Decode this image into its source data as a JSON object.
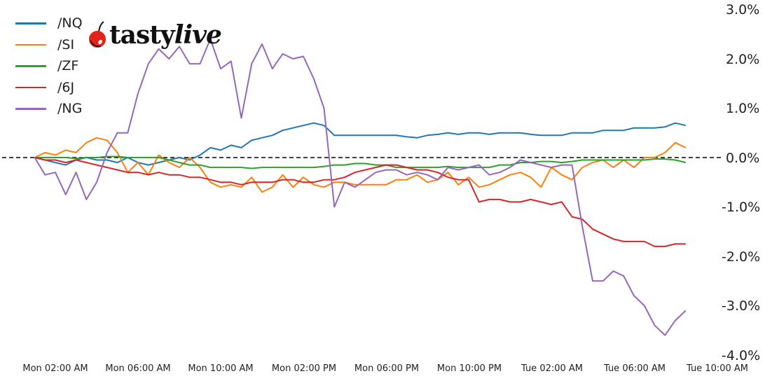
{
  "logo": {
    "cherry_icon": "cherry-icon",
    "text_bold": "tasty",
    "text_italic": "live",
    "accent": "#e2231a"
  },
  "legend": [
    {
      "label": "/NQ",
      "color": "#1f77b4"
    },
    {
      "label": "/SI",
      "color": "#ff7f0e"
    },
    {
      "label": "/ZF",
      "color": "#2ca02c"
    },
    {
      "label": "/6J",
      "color": "#d62728"
    },
    {
      "label": "/NG",
      "color": "#9467bd"
    }
  ],
  "yticks": [
    "3.0%",
    "2.0%",
    "1.0%",
    "0.0%",
    "-1.0%",
    "-2.0%",
    "-3.0%",
    "-4.0%"
  ],
  "xticks": [
    "Mon 02:00 AM",
    "Mon 06:00 AM",
    "Mon 10:00 AM",
    "Mon 02:00 PM",
    "Mon 06:00 PM",
    "Mon 10:00 PM",
    "Tue 02:00 AM",
    "Tue 06:00 AM",
    "Tue 10:00 AM"
  ],
  "chart_data": {
    "type": "line",
    "title": "",
    "xlabel": "",
    "ylabel": "",
    "ylim": [
      -4.0,
      3.0
    ],
    "y_axis_position": "right",
    "y_tick_format": "percent",
    "reference_line": {
      "y": 0.0,
      "style": "dashed",
      "color": "#000000"
    },
    "legend_position": "upper left",
    "grid": false,
    "x_hours_from_mon_0000": [
      1.0,
      1.5,
      2.0,
      2.5,
      3.0,
      3.5,
      4.0,
      4.5,
      5.0,
      5.5,
      6.0,
      6.5,
      7.0,
      7.5,
      8.0,
      8.5,
      9.0,
      9.5,
      10.0,
      10.5,
      11.0,
      11.5,
      12.0,
      12.5,
      13.0,
      13.5,
      14.0,
      14.5,
      15.0,
      15.5,
      16.0,
      16.5,
      17.0,
      17.5,
      18.0,
      18.5,
      19.0,
      19.5,
      20.0,
      20.5,
      21.0,
      21.5,
      22.0,
      22.5,
      23.0,
      23.5,
      24.0,
      24.5,
      25.0,
      25.5,
      26.0,
      26.5,
      27.0,
      27.5,
      28.0,
      28.5,
      29.0,
      29.5,
      30.0,
      30.5,
      31.0,
      31.5,
      32.0,
      32.5
    ],
    "series": [
      {
        "name": "/NQ",
        "color": "#1f77b4",
        "values": [
          0.0,
          -0.05,
          -0.1,
          -0.15,
          -0.05,
          0.0,
          -0.05,
          -0.05,
          -0.1,
          0.0,
          -0.1,
          -0.15,
          -0.1,
          -0.05,
          0.0,
          -0.05,
          0.05,
          0.2,
          0.15,
          0.25,
          0.2,
          0.35,
          0.4,
          0.45,
          0.55,
          0.6,
          0.65,
          0.7,
          0.65,
          0.45,
          0.45,
          0.45,
          0.45,
          0.45,
          0.45,
          0.45,
          0.42,
          0.4,
          0.45,
          0.47,
          0.5,
          0.47,
          0.5,
          0.5,
          0.47,
          0.5,
          0.5,
          0.5,
          0.47,
          0.45,
          0.45,
          0.45,
          0.5,
          0.5,
          0.5,
          0.55,
          0.55,
          0.55,
          0.6,
          0.6,
          0.6,
          0.62,
          0.7,
          0.65
        ]
      },
      {
        "name": "/SI",
        "color": "#ff7f0e",
        "values": [
          0.0,
          0.1,
          0.05,
          0.15,
          0.1,
          0.3,
          0.4,
          0.35,
          0.1,
          -0.3,
          -0.1,
          -0.35,
          0.05,
          -0.1,
          -0.2,
          0.0,
          -0.2,
          -0.5,
          -0.6,
          -0.55,
          -0.6,
          -0.4,
          -0.7,
          -0.6,
          -0.35,
          -0.6,
          -0.4,
          -0.55,
          -0.6,
          -0.5,
          -0.5,
          -0.55,
          -0.55,
          -0.55,
          -0.55,
          -0.45,
          -0.45,
          -0.35,
          -0.5,
          -0.45,
          -0.3,
          -0.55,
          -0.4,
          -0.6,
          -0.55,
          -0.45,
          -0.35,
          -0.3,
          -0.4,
          -0.6,
          -0.2,
          -0.35,
          -0.45,
          -0.2,
          -0.1,
          -0.05,
          -0.2,
          -0.05,
          -0.2,
          0.0,
          0.0,
          0.1,
          0.3,
          0.2
        ]
      },
      {
        "name": "/ZF",
        "color": "#2ca02c",
        "values": [
          0.0,
          0.0,
          0.0,
          0.0,
          -0.02,
          0.0,
          0.0,
          0.02,
          0.02,
          0.0,
          0.0,
          0.0,
          0.0,
          -0.05,
          -0.1,
          -0.15,
          -0.15,
          -0.2,
          -0.2,
          -0.2,
          -0.2,
          -0.22,
          -0.2,
          -0.2,
          -0.2,
          -0.2,
          -0.2,
          -0.2,
          -0.18,
          -0.15,
          -0.15,
          -0.12,
          -0.12,
          -0.15,
          -0.15,
          -0.2,
          -0.2,
          -0.2,
          -0.2,
          -0.2,
          -0.18,
          -0.2,
          -0.2,
          -0.2,
          -0.2,
          -0.15,
          -0.15,
          -0.1,
          -0.1,
          -0.08,
          -0.08,
          -0.1,
          -0.08,
          -0.05,
          -0.05,
          -0.05,
          -0.05,
          -0.05,
          -0.05,
          -0.05,
          -0.03,
          -0.03,
          -0.05,
          -0.1
        ]
      },
      {
        "name": "/6J",
        "color": "#d62728",
        "values": [
          0.0,
          -0.05,
          -0.05,
          -0.1,
          -0.05,
          -0.1,
          -0.15,
          -0.2,
          -0.25,
          -0.3,
          -0.3,
          -0.35,
          -0.3,
          -0.35,
          -0.35,
          -0.4,
          -0.4,
          -0.45,
          -0.5,
          -0.5,
          -0.55,
          -0.5,
          -0.5,
          -0.5,
          -0.45,
          -0.45,
          -0.5,
          -0.5,
          -0.45,
          -0.45,
          -0.4,
          -0.3,
          -0.25,
          -0.2,
          -0.15,
          -0.15,
          -0.2,
          -0.25,
          -0.25,
          -0.3,
          -0.4,
          -0.45,
          -0.45,
          -0.9,
          -0.85,
          -0.85,
          -0.9,
          -0.9,
          -0.85,
          -0.9,
          -0.95,
          -0.9,
          -1.2,
          -1.25,
          -1.45,
          -1.55,
          -1.65,
          -1.7,
          -1.7,
          -1.7,
          -1.8,
          -1.8,
          -1.75,
          -1.75
        ]
      },
      {
        "name": "/NG",
        "color": "#9467bd",
        "values": [
          0.0,
          -0.35,
          -0.3,
          -0.75,
          -0.3,
          -0.85,
          -0.5,
          0.1,
          0.5,
          0.5,
          1.3,
          1.9,
          2.2,
          2.0,
          2.25,
          1.9,
          1.9,
          2.4,
          1.8,
          1.95,
          0.8,
          1.9,
          2.3,
          1.8,
          2.1,
          2.0,
          2.05,
          1.6,
          1.0,
          -1.0,
          -0.5,
          -0.6,
          -0.45,
          -0.3,
          -0.25,
          -0.25,
          -0.35,
          -0.3,
          -0.35,
          -0.45,
          -0.2,
          -0.25,
          -0.2,
          -0.15,
          -0.35,
          -0.3,
          -0.2,
          -0.05,
          -0.1,
          -0.15,
          -0.2,
          -0.15,
          -0.15,
          -1.4,
          -2.5,
          -2.5,
          -2.3,
          -2.4,
          -2.8,
          -3.0,
          -3.4,
          -3.6,
          -3.3,
          -3.1
        ]
      }
    ]
  }
}
